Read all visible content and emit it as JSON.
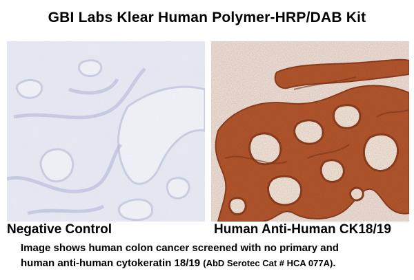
{
  "title": "GBI Labs Klear Human Polymer-HRP/DAB Kit",
  "panels": {
    "left": {
      "label": "Negative Control",
      "image_desc": "micrograph-negative-control"
    },
    "right": {
      "label": "Human Anti-Human CK18/19",
      "image_desc": "micrograph-ck18-19-stain"
    }
  },
  "caption": {
    "line1": "Image shows human colon cancer screened with no primary and",
    "line2_main": "human anti-human cytokeratin 18/19 ",
    "line2_ref": "(AbD Serotec Cat # HCA 077A)",
    "line2_end": "."
  },
  "colors": {
    "background": "#ffffff",
    "negative_tissue": "#e4e6ef",
    "negative_nuclei": "#9aa1c6",
    "stain_brown": "#a8471f",
    "stain_dark": "#7a2a0e",
    "lumen": "#f6f4f0"
  }
}
